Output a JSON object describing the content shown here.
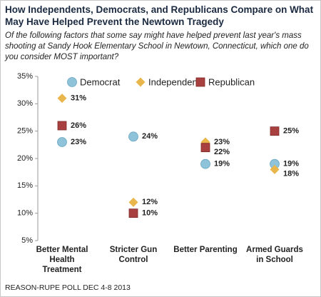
{
  "chart_data": {
    "type": "dot",
    "title": "How Independents, Democrats, and Republicans Compare on What May Have Helped Prevent the Newtown Tragedy",
    "subtitle": "Of the following factors that some say might have helped prevent last year's mass shooting at Sandy Hook Elementary School in Newtown, Connecticut, which one do you consider MOST important?",
    "source": "REASON-RUPE POLL DEC 4-8 2013",
    "categories": [
      "Better Mental Health Treatment",
      "Stricter Gun Control",
      "Better Parenting",
      "Armed Guards in School"
    ],
    "series": [
      {
        "name": "Democrat",
        "color": "#8ec3d9",
        "marker": "circle",
        "values": [
          23,
          24,
          19,
          19
        ],
        "value_labels": [
          "23%",
          "24%",
          "19%",
          "19%"
        ]
      },
      {
        "name": "Independent",
        "color": "#e8b64a",
        "marker": "diamond",
        "values": [
          31,
          12,
          23,
          18
        ],
        "value_labels": [
          "31%",
          "12%",
          "23%",
          "18%"
        ]
      },
      {
        "name": "Republican",
        "color": "#a8403f",
        "marker": "square",
        "values": [
          26,
          10,
          22,
          25
        ],
        "value_labels": [
          "26%",
          "10%",
          "22%",
          "25%"
        ]
      }
    ],
    "ylim": [
      5,
      35
    ],
    "yticks": [
      {
        "value": 5,
        "label": "5%"
      },
      {
        "value": 10,
        "label": "10%"
      },
      {
        "value": 15,
        "label": "15%"
      },
      {
        "value": 20,
        "label": "20%"
      },
      {
        "value": 25,
        "label": "25%"
      },
      {
        "value": 30,
        "label": "30%"
      },
      {
        "value": 35,
        "label": "35%"
      }
    ],
    "grid": false,
    "legend": "top"
  }
}
